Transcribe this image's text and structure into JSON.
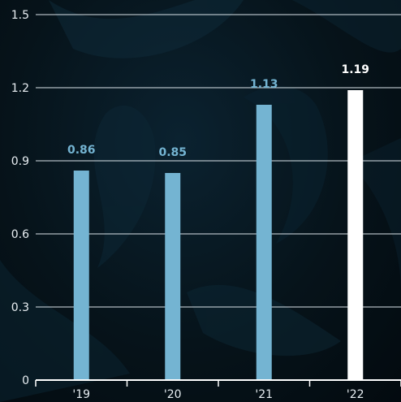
{
  "chart_data": {
    "type": "bar",
    "categories": [
      "'19",
      "'20",
      "'21",
      "'22"
    ],
    "values": [
      0.86,
      0.85,
      1.13,
      1.19
    ],
    "data_labels": [
      "0.86",
      "0.85",
      "1.13",
      "1.19"
    ],
    "ylim": [
      0,
      1.5
    ],
    "yticks": [
      "0",
      "0.3",
      "0.6",
      "0.9",
      "1.2",
      "1.5"
    ],
    "ytick_values": [
      0,
      0.3,
      0.6,
      0.9,
      1.2,
      1.5
    ],
    "grid": true,
    "colors": {
      "bar": "#74b4d2",
      "highlight_bar": "#ffffff",
      "label": "#74b4d2",
      "highlight_label": "#ffffff",
      "grid": "#d9e2e8",
      "axis": "#ffffff"
    },
    "highlight_index": 3
  }
}
